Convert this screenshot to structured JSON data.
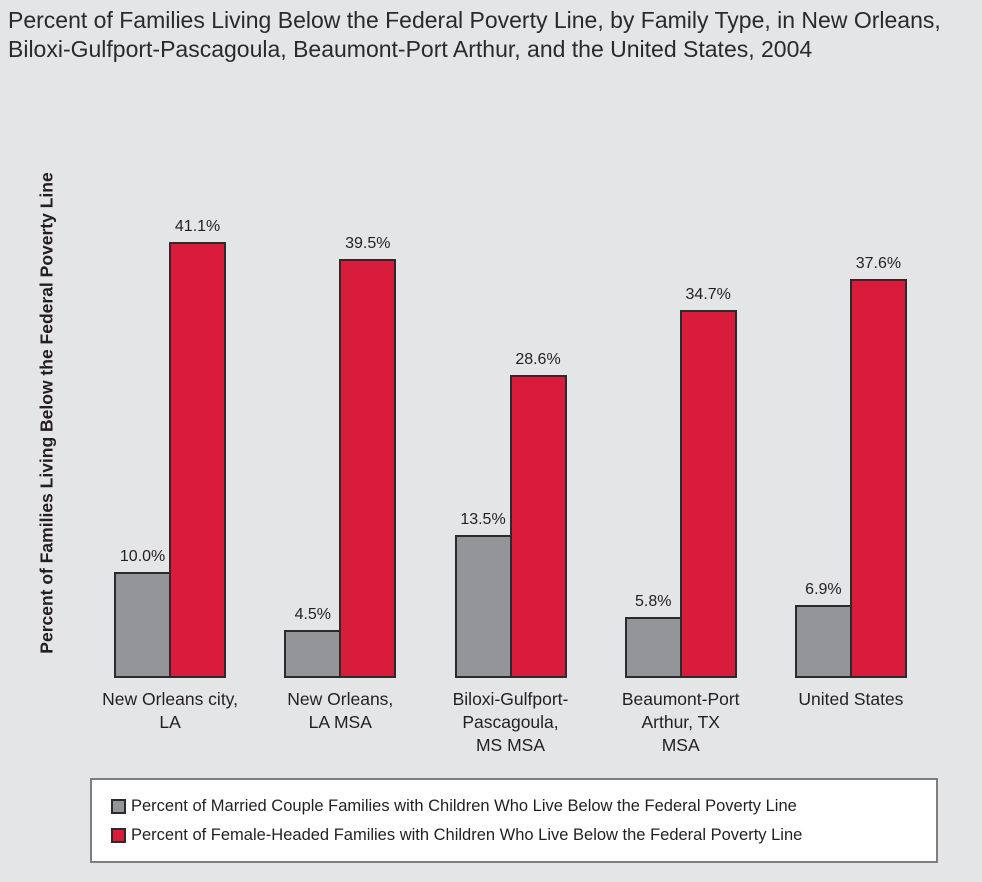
{
  "title": "Percent of Families Living Below the Federal Poverty Line, by Family Type, in New Orleans, Biloxi-Gulfport-Pascagoula, Beaumont-Port Arthur, and the United States, 2004",
  "y_axis_label": "Percent of Families Living Below the Federal Poverty Line",
  "colors": {
    "background": "#E4E5E7",
    "married_couple_bar": "#939598",
    "female_headed_bar": "#D91C3C",
    "bar_border": "#2B2B2D",
    "text": "#231F20",
    "legend_background": "#FFFFFF",
    "legend_border": "#7C7E82"
  },
  "chart_data": {
    "type": "bar",
    "title": "Percent of Families Living Below the Federal Poverty Line, by Family Type, in New Orleans, Biloxi-Gulfport-Pascagoula, Beaumont-Port Arthur, and the United States, 2004",
    "xlabel": "",
    "ylabel": "Percent of Families Living Below the Federal Poverty Line",
    "ylim": [
      0,
      50
    ],
    "grid": false,
    "axis_ticks_visible": false,
    "data_labels": true,
    "legend_position": "bottom",
    "categories": [
      "New Orleans city, LA",
      "New Orleans, LA MSA",
      "Biloxi-Gulfport-Pascagoula, MS MSA",
      "Beaumont-Port Arthur, TX MSA",
      "United States"
    ],
    "x_tick_labels": [
      "New Orleans city,\nLA",
      "New Orleans,\nLA MSA",
      "Biloxi-Gulfport-\nPascagoula,\nMS MSA",
      "Beaumont-Port\nArthur, TX\nMSA",
      "United States"
    ],
    "series": [
      {
        "name": "Percent of Married Couple Families with Children Who Live Below the Federal Poverty Line",
        "color": "#939598",
        "values": [
          10.0,
          4.5,
          13.5,
          5.8,
          6.9
        ],
        "value_labels": [
          "10.0%",
          "4.5%",
          "13.5%",
          "5.8%",
          "6.9%"
        ]
      },
      {
        "name": "Percent of Female-Headed Families with Children Who Live Below the Federal Poverty Line",
        "color": "#D91C3C",
        "values": [
          41.1,
          39.5,
          28.6,
          34.7,
          37.6
        ],
        "value_labels": [
          "41.1%",
          "39.5%",
          "28.6%",
          "34.7%",
          "37.6%"
        ]
      }
    ]
  },
  "legend": {
    "items": [
      {
        "swatch": "married-couple",
        "label": "Percent of Married Couple Families with Children Who Live Below the Federal Poverty Line"
      },
      {
        "swatch": "female-headed",
        "label": "Percent of Female-Headed Families with Children Who Live Below the Federal Poverty Line"
      }
    ]
  }
}
